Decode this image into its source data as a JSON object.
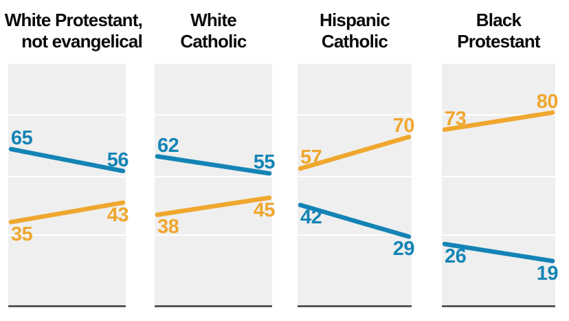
{
  "chart_data": {
    "type": "line",
    "subtype": "slope-small-multiples",
    "x_points": 2,
    "ylim": [
      0,
      100
    ],
    "grid": true,
    "value_labels": "endpoints",
    "panels": [
      {
        "title_lines": [
          "White Protestant,",
          "not evangelical"
        ],
        "series": [
          {
            "name": "blue",
            "color": "#1484b5",
            "values": [
              65,
              56
            ]
          },
          {
            "name": "orange",
            "color": "#efa72e",
            "values": [
              35,
              43
            ]
          }
        ]
      },
      {
        "title_lines": [
          "White",
          "Catholic"
        ],
        "series": [
          {
            "name": "blue",
            "color": "#1484b5",
            "values": [
              62,
              55
            ]
          },
          {
            "name": "orange",
            "color": "#efa72e",
            "values": [
              38,
              45
            ]
          }
        ]
      },
      {
        "title_lines": [
          "Hispanic",
          "Catholic"
        ],
        "series": [
          {
            "name": "orange",
            "color": "#efa72e",
            "values": [
              57,
              70
            ]
          },
          {
            "name": "blue",
            "color": "#1484b5",
            "values": [
              42,
              29
            ]
          }
        ]
      },
      {
        "title_lines": [
          "Black",
          "Protestant"
        ],
        "series": [
          {
            "name": "orange",
            "color": "#efa72e",
            "values": [
              73,
              80
            ]
          },
          {
            "name": "blue",
            "color": "#1484b5",
            "values": [
              26,
              19
            ]
          }
        ]
      }
    ]
  },
  "colors": {
    "blue": "#1484b5",
    "orange": "#efa72e",
    "panel_bg": "#efefef",
    "gridline": "#ffffff",
    "baseline": "#56565a",
    "title": "#0a0a0a"
  }
}
